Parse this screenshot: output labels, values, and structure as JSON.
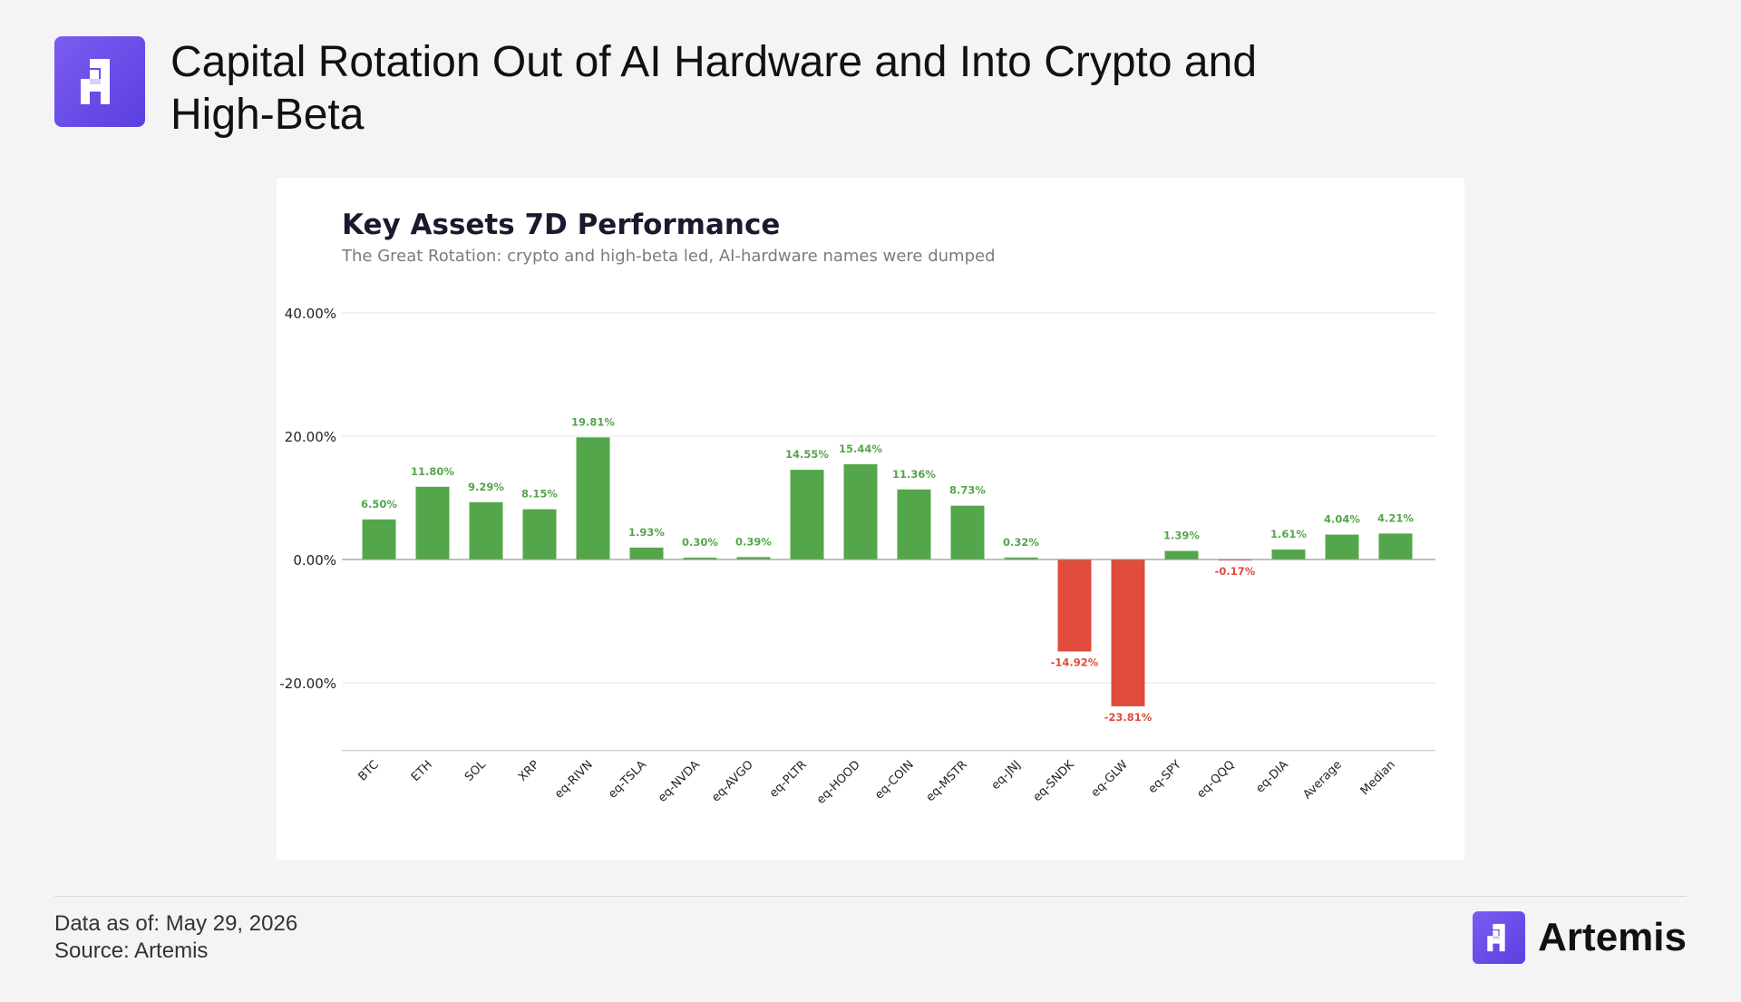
{
  "header": {
    "title": "Capital Rotation Out of AI Hardware and Into Crypto and High-Beta"
  },
  "footer": {
    "data_as_of": "Data as of: May 29, 2026",
    "source": "Source: Artemis",
    "brand": "Artemis"
  },
  "colors": {
    "positive": "#54a64a",
    "negative": "#e04b3c",
    "brand": "#6b4ee8"
  },
  "icons": {
    "header_logo": "artemis-logo-icon",
    "footer_logo": "artemis-logo-icon"
  },
  "chart_data": {
    "type": "bar",
    "title": "Key Assets 7D Performance",
    "subtitle": "The Great Rotation: crypto and high-beta led, AI-hardware names were dumped",
    "xlabel": "",
    "ylabel": "",
    "categories": [
      "BTC",
      "ETH",
      "SOL",
      "XRP",
      "eq-RIVN",
      "eq-TSLA",
      "eq-NVDA",
      "eq-AVGO",
      "eq-PLTR",
      "eq-HOOD",
      "eq-COIN",
      "eq-MSTR",
      "eq-JNJ",
      "eq-SNDK",
      "eq-GLW",
      "eq-SPY",
      "eq-QQQ",
      "eq-DIA",
      "Average",
      "Median"
    ],
    "values": [
      6.5,
      11.8,
      9.29,
      8.15,
      19.81,
      1.93,
      0.3,
      0.39,
      14.55,
      15.44,
      11.36,
      8.73,
      0.32,
      -14.92,
      -23.81,
      1.39,
      -0.17,
      1.61,
      4.04,
      4.21
    ],
    "value_labels": [
      "6.50%",
      "11.80%",
      "9.29%",
      "8.15%",
      "19.81%",
      "1.93%",
      "0.30%",
      "0.39%",
      "14.55%",
      "15.44%",
      "11.36%",
      "8.73%",
      "0.32%",
      "-14.92%",
      "-23.81%",
      "1.39%",
      "-0.17%",
      "1.61%",
      "4.04%",
      "4.21%"
    ],
    "yticks": [
      40,
      20,
      0,
      -20
    ],
    "ytick_labels": [
      "40.00%",
      "20.00%",
      "0.00%",
      "-20.00%"
    ],
    "ylim": [
      -31,
      40
    ],
    "grid": true,
    "legend": "none"
  }
}
